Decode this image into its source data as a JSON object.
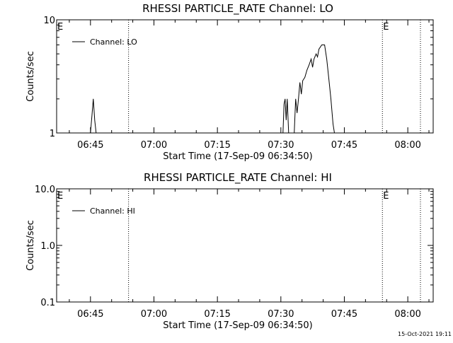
{
  "footer_timestamp": "15-Oct-2021 19:11",
  "chart_data": [
    {
      "type": "line",
      "title": "RHESSI PARTICLE_RATE Channel: LO",
      "xlabel": "Start Time (17-Sep-09 06:34:50)",
      "ylabel": "Counts/sec",
      "y_scale": "log",
      "ylim": [
        1,
        10
      ],
      "y_ticks": [
        {
          "value": 1,
          "label": "1"
        },
        {
          "value": 10,
          "label": "10"
        }
      ],
      "x_range": [
        "06:37",
        "08:06"
      ],
      "x_ticks": [
        "06:45",
        "07:00",
        "07:15",
        "07:30",
        "07:45",
        "08:00"
      ],
      "vertical_markers": [
        {
          "time": "06:37",
          "style": "solid",
          "label": "E"
        },
        {
          "time": "06:54",
          "style": "dotted",
          "label": ""
        },
        {
          "time": "07:54",
          "style": "dotted",
          "label": "E"
        },
        {
          "time": "08:11",
          "style": "dotted",
          "label": ""
        }
      ],
      "legend": {
        "position": "top-left",
        "entries": [
          "Channel: LO"
        ]
      },
      "series": [
        {
          "name": "Channel: LO",
          "color": "#000000",
          "points": [
            [
              "06:45:00",
              1
            ],
            [
              "06:45:20",
              1.4
            ],
            [
              "06:45:40",
              2
            ],
            [
              "06:46:00",
              1.3
            ],
            [
              "06:46:20",
              1
            ],
            [
              "07:30:30",
              1
            ],
            [
              "07:30:45",
              1.8
            ],
            [
              "07:31:00",
              2
            ],
            [
              "07:31:15",
              1.3
            ],
            [
              "07:31:30",
              2
            ],
            [
              "07:31:50",
              1
            ],
            [
              "07:33:10",
              1
            ],
            [
              "07:33:30",
              2
            ],
            [
              "07:33:50",
              1.5
            ],
            [
              "07:34:10",
              2
            ],
            [
              "07:34:30",
              2.8
            ],
            [
              "07:34:50",
              2.2
            ],
            [
              "07:35:10",
              2.9
            ],
            [
              "07:35:40",
              3.1
            ],
            [
              "07:36:10",
              3.6
            ],
            [
              "07:36:40",
              4
            ],
            [
              "07:37:10",
              4.5
            ],
            [
              "07:37:30",
              3.8
            ],
            [
              "07:37:50",
              4.5
            ],
            [
              "07:38:20",
              5
            ],
            [
              "07:38:40",
              4.7
            ],
            [
              "07:39:00",
              5.5
            ],
            [
              "07:39:40",
              6
            ],
            [
              "07:40:20",
              6
            ],
            [
              "07:40:50",
              4.5
            ],
            [
              "07:41:20",
              3
            ],
            [
              "07:41:50",
              2
            ],
            [
              "07:42:20",
              1.2
            ],
            [
              "07:42:40",
              1
            ]
          ]
        }
      ]
    },
    {
      "type": "line",
      "title": "RHESSI PARTICLE_RATE Channel: HI",
      "xlabel": "Start Time (17-Sep-09 06:34:50)",
      "ylabel": "Counts/sec",
      "y_scale": "log",
      "ylim": [
        0.1,
        10
      ],
      "y_ticks": [
        {
          "value": 0.1,
          "label": "0.1"
        },
        {
          "value": 1,
          "label": "1.0"
        },
        {
          "value": 10,
          "label": "10.0"
        }
      ],
      "x_range": [
        "06:37",
        "08:06"
      ],
      "x_ticks": [
        "06:45",
        "07:00",
        "07:15",
        "07:30",
        "07:45",
        "08:00"
      ],
      "vertical_markers": [
        {
          "time": "06:37",
          "style": "solid",
          "label": "E"
        },
        {
          "time": "06:54",
          "style": "dotted",
          "label": ""
        },
        {
          "time": "07:54",
          "style": "dotted",
          "label": "E"
        },
        {
          "time": "08:11",
          "style": "dotted",
          "label": ""
        }
      ],
      "legend": {
        "position": "top-left",
        "entries": [
          "Channel: HI"
        ]
      },
      "series": [
        {
          "name": "Channel: HI",
          "color": "#000000",
          "points": []
        }
      ]
    }
  ]
}
